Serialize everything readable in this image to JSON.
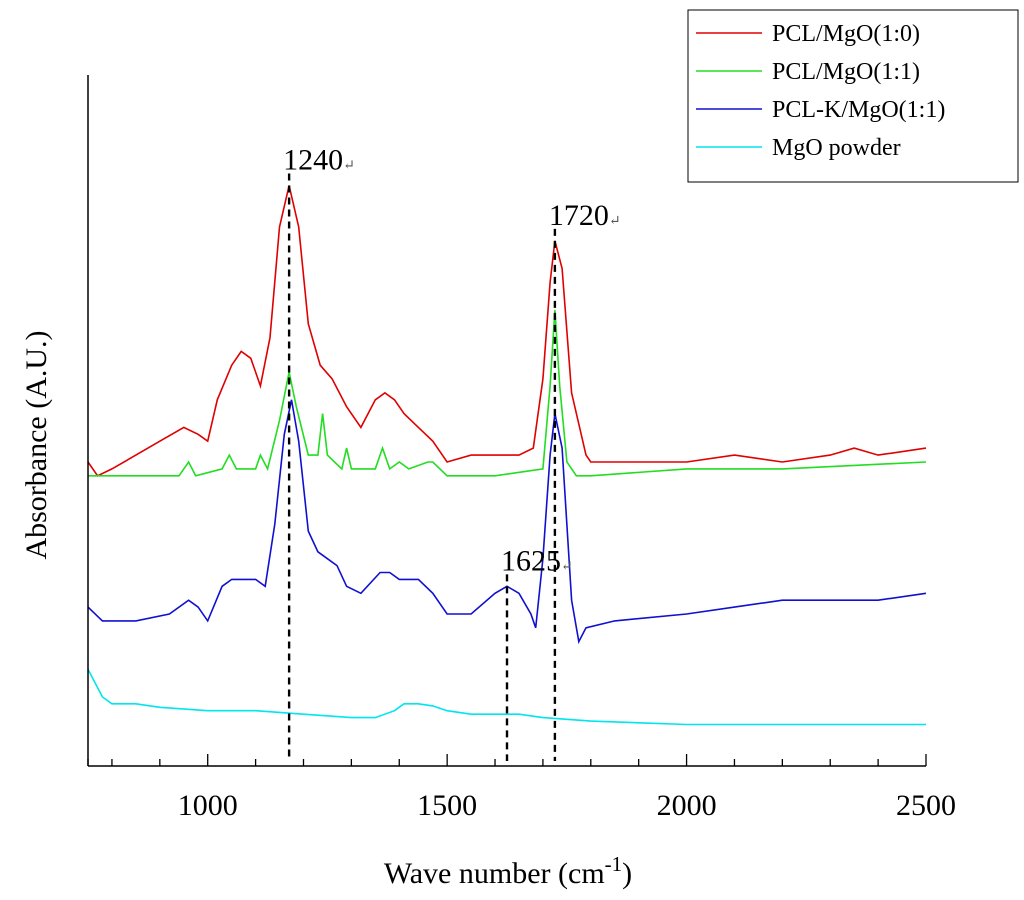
{
  "chart_data": {
    "type": "line",
    "xlabel": "Wave number (cm",
    "xlabel_sup": "-1",
    "xlabel_close": ")",
    "ylabel": "Absorbance (A.U.)",
    "xlim": [
      750,
      2500
    ],
    "ylim": [
      0,
      100
    ],
    "x_ticks": [
      1000,
      1500,
      2000,
      2500
    ],
    "y_ticks_shown": false,
    "grid": false,
    "legend_position": "top-right",
    "series": [
      {
        "name": "PCL/MgO(1:0)",
        "color": "#e00000",
        "points": [
          [
            750,
            44
          ],
          [
            770,
            42
          ],
          [
            800,
            43
          ],
          [
            850,
            45
          ],
          [
            900,
            47
          ],
          [
            950,
            49
          ],
          [
            980,
            48
          ],
          [
            1000,
            47
          ],
          [
            1020,
            53
          ],
          [
            1050,
            58
          ],
          [
            1070,
            60
          ],
          [
            1090,
            59
          ],
          [
            1110,
            55
          ],
          [
            1130,
            62
          ],
          [
            1150,
            78
          ],
          [
            1170,
            84
          ],
          [
            1190,
            78
          ],
          [
            1210,
            64
          ],
          [
            1235,
            58
          ],
          [
            1260,
            56
          ],
          [
            1290,
            52
          ],
          [
            1320,
            49
          ],
          [
            1350,
            53
          ],
          [
            1370,
            54
          ],
          [
            1390,
            53
          ],
          [
            1410,
            51
          ],
          [
            1440,
            49
          ],
          [
            1470,
            47
          ],
          [
            1500,
            44
          ],
          [
            1550,
            45
          ],
          [
            1600,
            45
          ],
          [
            1650,
            45
          ],
          [
            1680,
            46
          ],
          [
            1700,
            56
          ],
          [
            1715,
            70
          ],
          [
            1725,
            76
          ],
          [
            1740,
            72
          ],
          [
            1760,
            54
          ],
          [
            1790,
            45
          ],
          [
            1800,
            44
          ],
          [
            1900,
            44
          ],
          [
            2000,
            44
          ],
          [
            2100,
            45
          ],
          [
            2200,
            44
          ],
          [
            2300,
            45
          ],
          [
            2350,
            46
          ],
          [
            2400,
            45
          ],
          [
            2500,
            46
          ]
        ]
      },
      {
        "name": "PCL/MgO(1:1)",
        "color": "#22dd22",
        "points": [
          [
            750,
            42
          ],
          [
            850,
            42
          ],
          [
            940,
            42
          ],
          [
            960,
            44
          ],
          [
            975,
            42
          ],
          [
            1030,
            43
          ],
          [
            1045,
            45
          ],
          [
            1060,
            43
          ],
          [
            1100,
            43
          ],
          [
            1110,
            45
          ],
          [
            1125,
            43
          ],
          [
            1150,
            50
          ],
          [
            1170,
            57
          ],
          [
            1185,
            52
          ],
          [
            1210,
            45
          ],
          [
            1230,
            45
          ],
          [
            1240,
            51
          ],
          [
            1250,
            45
          ],
          [
            1280,
            43
          ],
          [
            1290,
            46
          ],
          [
            1300,
            43
          ],
          [
            1350,
            43
          ],
          [
            1365,
            46
          ],
          [
            1380,
            43
          ],
          [
            1400,
            44
          ],
          [
            1420,
            43
          ],
          [
            1460,
            44
          ],
          [
            1470,
            44
          ],
          [
            1500,
            42
          ],
          [
            1600,
            42
          ],
          [
            1700,
            43
          ],
          [
            1715,
            55
          ],
          [
            1725,
            66
          ],
          [
            1735,
            55
          ],
          [
            1750,
            44
          ],
          [
            1770,
            42
          ],
          [
            1800,
            42
          ],
          [
            2000,
            43
          ],
          [
            2200,
            43
          ],
          [
            2500,
            44
          ]
        ]
      },
      {
        "name": "PCL-K/MgO(1:1)",
        "color": "#1010d0",
        "points": [
          [
            750,
            23
          ],
          [
            780,
            21
          ],
          [
            850,
            21
          ],
          [
            920,
            22
          ],
          [
            960,
            24
          ],
          [
            980,
            23
          ],
          [
            1000,
            21
          ],
          [
            1030,
            26
          ],
          [
            1050,
            27
          ],
          [
            1080,
            27
          ],
          [
            1100,
            27
          ],
          [
            1120,
            26
          ],
          [
            1140,
            35
          ],
          [
            1160,
            48
          ],
          [
            1175,
            53
          ],
          [
            1190,
            47
          ],
          [
            1210,
            34
          ],
          [
            1230,
            31
          ],
          [
            1250,
            30
          ],
          [
            1270,
            29
          ],
          [
            1290,
            26
          ],
          [
            1320,
            25
          ],
          [
            1360,
            28
          ],
          [
            1380,
            28
          ],
          [
            1400,
            27
          ],
          [
            1440,
            27
          ],
          [
            1470,
            25
          ],
          [
            1500,
            22
          ],
          [
            1550,
            22
          ],
          [
            1600,
            25
          ],
          [
            1625,
            26
          ],
          [
            1650,
            25
          ],
          [
            1675,
            22
          ],
          [
            1685,
            20
          ],
          [
            1700,
            30
          ],
          [
            1715,
            45
          ],
          [
            1725,
            51
          ],
          [
            1740,
            46
          ],
          [
            1760,
            24
          ],
          [
            1775,
            18
          ],
          [
            1790,
            20
          ],
          [
            1850,
            21
          ],
          [
            2000,
            22
          ],
          [
            2100,
            23
          ],
          [
            2200,
            24
          ],
          [
            2300,
            24
          ],
          [
            2400,
            24
          ],
          [
            2500,
            25
          ]
        ]
      },
      {
        "name": "MgO powder",
        "color": "#00e5ee",
        "points": [
          [
            750,
            14
          ],
          [
            780,
            10
          ],
          [
            800,
            9
          ],
          [
            850,
            9
          ],
          [
            900,
            8.5
          ],
          [
            1000,
            8
          ],
          [
            1100,
            8
          ],
          [
            1200,
            7.5
          ],
          [
            1300,
            7
          ],
          [
            1350,
            7
          ],
          [
            1390,
            8
          ],
          [
            1410,
            9
          ],
          [
            1440,
            9
          ],
          [
            1470,
            8.7
          ],
          [
            1500,
            8
          ],
          [
            1550,
            7.5
          ],
          [
            1600,
            7.5
          ],
          [
            1650,
            7.5
          ],
          [
            1700,
            7
          ],
          [
            1800,
            6.5
          ],
          [
            2000,
            6
          ],
          [
            2200,
            6
          ],
          [
            2500,
            6
          ]
        ]
      }
    ],
    "annotations": [
      {
        "label": "1240",
        "x": 1170
      },
      {
        "label": "1720",
        "x": 1725
      },
      {
        "label": "1625",
        "x": 1625
      }
    ],
    "annotation_mark": "↵"
  }
}
